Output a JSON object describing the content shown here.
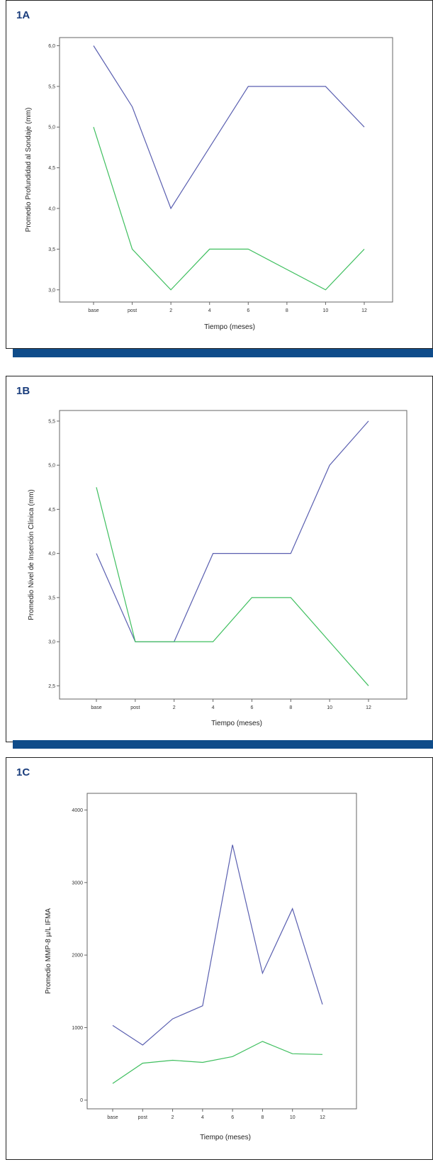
{
  "colors": {
    "series_1": "#5a5fb0",
    "series_2": "#3fbf5f",
    "bar": "#0f4c8a",
    "panel_label": "#1a3d7c"
  },
  "chart_data": [
    {
      "panel_label": "1A",
      "type": "line",
      "categories": [
        "base",
        "post",
        "2",
        "4",
        "6",
        "8",
        "10",
        "12"
      ],
      "xlabel": "Tiempo (meses)",
      "ylabel": "Promedio Profundidad al Sondaje (mm)",
      "yticks": [
        "3,0",
        "3,5",
        "4,0",
        "4,5",
        "5,0",
        "5,5",
        "6,0"
      ],
      "ylim": [
        2.85,
        6.1
      ],
      "grid": false,
      "series": [
        {
          "values": [
            6.0,
            5.25,
            4.0,
            4.75,
            5.5,
            5.5,
            5.5,
            5.0
          ]
        },
        {
          "values": [
            5.0,
            3.5,
            3.0,
            3.5,
            3.5,
            3.25,
            3.0,
            3.5
          ]
        }
      ]
    },
    {
      "panel_label": "1B",
      "type": "line",
      "categories": [
        "base",
        "post",
        "2",
        "4",
        "6",
        "8",
        "10",
        "12"
      ],
      "xlabel": "Tiempo (meses)",
      "ylabel": "Promedio Nivel de Inserción Clínica (mm)",
      "yticks": [
        "2,5",
        "3,0",
        "3,5",
        "4,0",
        "4,5",
        "5,0",
        "5,5"
      ],
      "ylim": [
        2.35,
        5.62
      ],
      "grid": false,
      "series": [
        {
          "values": [
            4.0,
            3.0,
            3.0,
            4.0,
            4.0,
            4.0,
            5.0,
            5.5
          ]
        },
        {
          "values": [
            4.75,
            3.0,
            3.0,
            3.0,
            3.5,
            3.5,
            3.0,
            2.5
          ]
        }
      ]
    },
    {
      "panel_label": "1C",
      "type": "line",
      "categories": [
        "base",
        "post",
        "2",
        "4",
        "6",
        "8",
        "10",
        "12"
      ],
      "xlabel": "Tiempo (meses)",
      "ylabel": "Promedio MMP-8 µ/L IFMA",
      "yticks": [
        "0",
        "1000",
        "2000",
        "3000",
        "4000"
      ],
      "ylim": [
        -120,
        4230
      ],
      "grid": false,
      "series": [
        {
          "values": [
            1030,
            760,
            1120,
            1300,
            3520,
            1750,
            2640,
            1320
          ]
        },
        {
          "values": [
            230,
            510,
            550,
            520,
            600,
            810,
            640,
            630
          ]
        }
      ]
    }
  ]
}
